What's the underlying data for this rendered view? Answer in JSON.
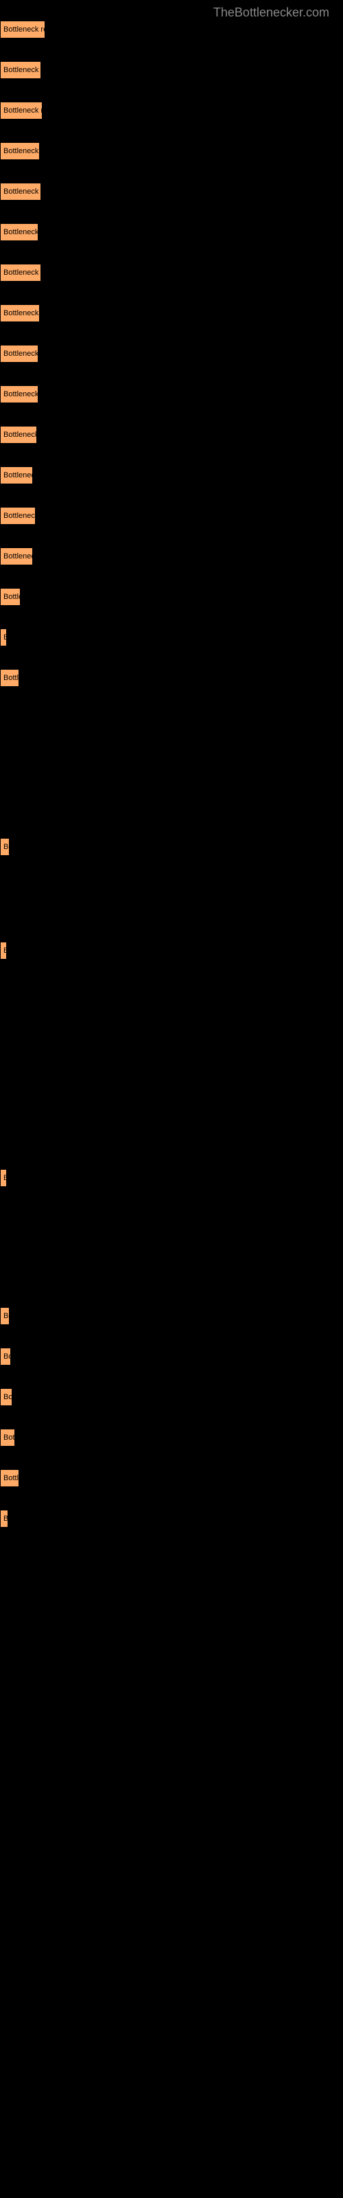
{
  "watermark": "TheBottlenecker.com",
  "watermark_color": "#888888",
  "background_color": "#000000",
  "button_background": "#ffaa66",
  "button_text_color": "#000000",
  "buttons": [
    {
      "label": "Bottleneck resu",
      "width": 66
    },
    {
      "label": "Bottleneck res",
      "width": 60
    },
    {
      "label": "Bottleneck res",
      "width": 62
    },
    {
      "label": "Bottleneck res",
      "width": 58
    },
    {
      "label": "Bottleneck res",
      "width": 60
    },
    {
      "label": "Bottleneck re",
      "width": 56
    },
    {
      "label": "Bottleneck res",
      "width": 60
    },
    {
      "label": "Bottleneck res",
      "width": 58
    },
    {
      "label": "Bottleneck re",
      "width": 56
    },
    {
      "label": "Bottleneck re",
      "width": 56
    },
    {
      "label": "Bottleneck re",
      "width": 54
    },
    {
      "label": "Bottleneck",
      "width": 48
    },
    {
      "label": "Bottleneck r",
      "width": 52
    },
    {
      "label": "Bottleneck",
      "width": 48
    },
    {
      "label": "Bottler",
      "width": 30
    },
    {
      "label": "B",
      "width": 8
    },
    {
      "label": "Bottle",
      "width": 28
    },
    {
      "label": "",
      "width": 4,
      "thin": true
    },
    {
      "label": "Bo",
      "width": 14
    },
    {
      "label": "B",
      "width": 8
    },
    {
      "label": "B",
      "width": 10
    },
    {
      "label": "Bo",
      "width": 14
    },
    {
      "label": "Bo",
      "width": 16
    },
    {
      "label": "Bot",
      "width": 18
    },
    {
      "label": "Bott",
      "width": 22
    },
    {
      "label": "Bottle",
      "width": 28
    },
    {
      "label": "B",
      "width": 12
    }
  ],
  "special_spacing": {
    "17": 180,
    "18": 120,
    "19": 300,
    "20": 170
  }
}
